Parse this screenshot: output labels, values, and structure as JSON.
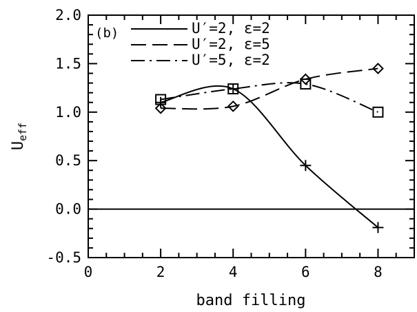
{
  "chart_data": {
    "type": "line",
    "panel_label": "(b)",
    "xlabel": "band filling",
    "ylabel_main": "U",
    "ylabel_sub": "eff",
    "xlim": [
      0,
      9
    ],
    "ylim": [
      -0.5,
      2.0
    ],
    "x_ticks": [
      0,
      2,
      4,
      6,
      8
    ],
    "y_ticks": [
      -0.5,
      0.0,
      0.5,
      1.0,
      1.5,
      2.0
    ],
    "x_tick_labels": [
      "0",
      "2",
      "4",
      "6",
      "8"
    ],
    "y_tick_labels": [
      "-0.5",
      "0.0",
      "0.5",
      "1.0",
      "1.5",
      "2.0"
    ],
    "reference_line_y": 0.0,
    "legend_position": "top-left",
    "series": [
      {
        "name": "U′=2, ε=2",
        "line_style": "solid",
        "marker": "plus",
        "x": [
          2,
          4,
          6,
          8
        ],
        "y": [
          1.1,
          1.24,
          0.45,
          -0.19
        ]
      },
      {
        "name": "U′=2, ε=5",
        "line_style": "dashed",
        "marker": "diamond",
        "x": [
          2,
          4,
          6,
          8
        ],
        "y": [
          1.04,
          1.06,
          1.34,
          1.45
        ]
      },
      {
        "name": "U′=5, ε=2",
        "line_style": "dashdot",
        "marker": "square",
        "x": [
          2,
          4,
          6,
          8
        ],
        "y": [
          1.13,
          1.24,
          1.29,
          1.0
        ]
      }
    ]
  }
}
